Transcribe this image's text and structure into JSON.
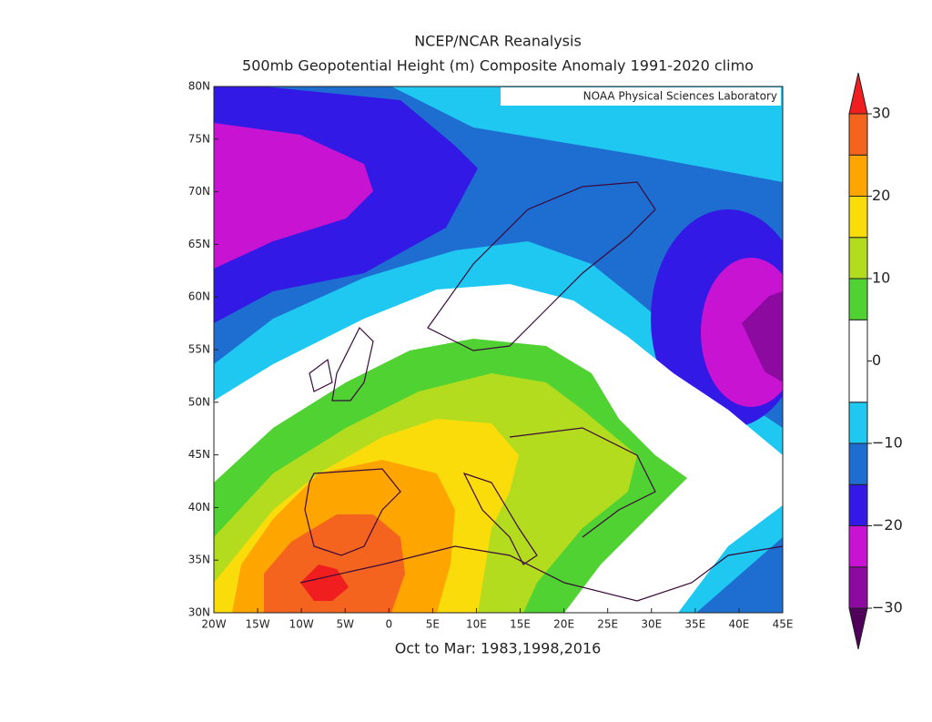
{
  "title": "NCEP/NCAR Reanalysis",
  "subtitle": "500mb Geopotential Height (m) Composite Anomaly 1991-2020 climo",
  "credit": "NOAA Physical Sciences Laboratory",
  "caption": "Oct to Mar: 1983,1998,2016",
  "map": {
    "xlim": [
      -20,
      45
    ],
    "ylim": [
      30,
      80
    ],
    "xticks": [
      {
        "value": -20,
        "label": "20W"
      },
      {
        "value": -15,
        "label": "15W"
      },
      {
        "value": -10,
        "label": "10W"
      },
      {
        "value": -5,
        "label": "5W"
      },
      0,
      {
        "value": 5,
        "label": "5E"
      },
      {
        "value": 10,
        "label": "10E"
      },
      {
        "value": 15,
        "label": "15E"
      },
      {
        "value": 20,
        "label": "20E"
      },
      {
        "value": 25,
        "label": "25E"
      },
      {
        "value": 30,
        "label": "30E"
      },
      {
        "value": 35,
        "label": "35E"
      },
      {
        "value": 40,
        "label": "40E"
      },
      {
        "value": 45,
        "label": "45E"
      }
    ],
    "yticks": [
      {
        "value": 30,
        "label": "30N"
      },
      {
        "value": 35,
        "label": "35N"
      },
      {
        "value": 40,
        "label": "40N"
      },
      {
        "value": 45,
        "label": "45N"
      },
      {
        "value": 50,
        "label": "50N"
      },
      {
        "value": 55,
        "label": "55N"
      },
      {
        "value": 60,
        "label": "60N"
      },
      {
        "value": 65,
        "label": "65N"
      },
      {
        "value": 70,
        "label": "70N"
      },
      {
        "value": 75,
        "label": "75N"
      },
      {
        "value": 80,
        "label": "80N"
      }
    ]
  },
  "colorbar": {
    "bounds": [
      -30,
      -25,
      -20,
      -15,
      -10,
      -5,
      5,
      10,
      15,
      20,
      25,
      30
    ],
    "colors": [
      "#50005a",
      "#8c0aa0",
      "#c814d2",
      "#3219e6",
      "#1e6ed2",
      "#1ec8f0",
      "#ffffff",
      "#50d232",
      "#b4dc1e",
      "#fadc0a",
      "#ffa500",
      "#f5641e",
      "#f01e1e"
    ],
    "ticks": [
      {
        "value": -30,
        "label": "−30"
      },
      {
        "value": -20,
        "label": "−20"
      },
      {
        "value": -10,
        "label": "−10"
      },
      0,
      10,
      20,
      30
    ]
  }
}
